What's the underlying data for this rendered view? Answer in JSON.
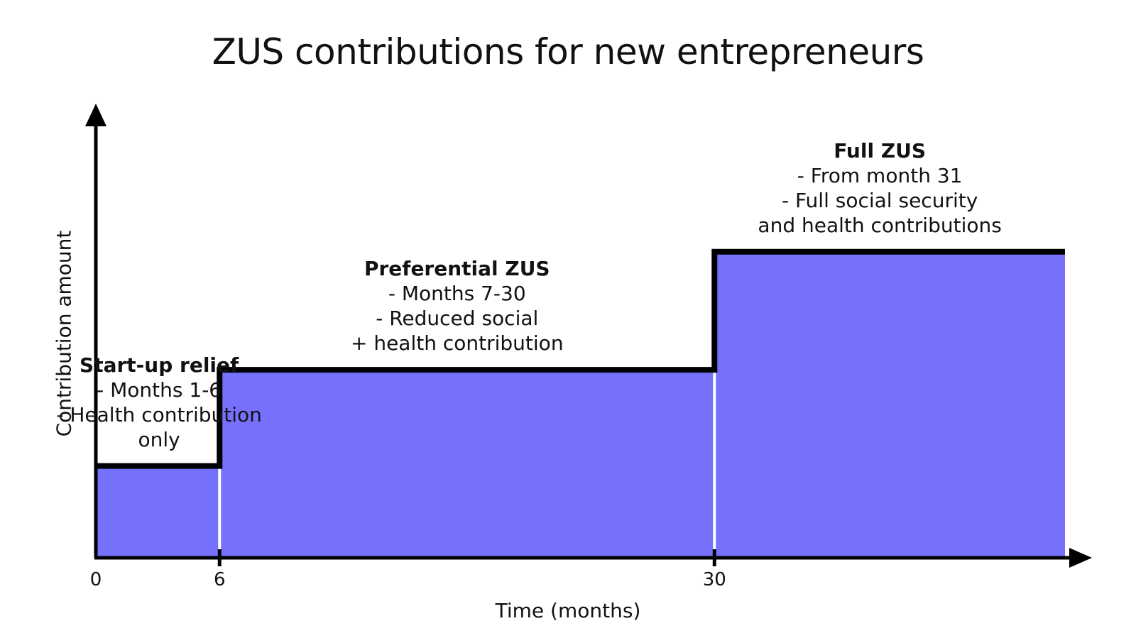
{
  "chart_data": {
    "type": "area",
    "title": "ZUS contributions for new entrepreneurs",
    "xlabel": "Time (months)",
    "ylabel": "Contribution amount",
    "x_ticks": [
      "0",
      "6",
      "30"
    ],
    "x_tick_values": [
      0,
      6,
      30
    ],
    "xlim": [
      0,
      47
    ],
    "ylim": [
      0,
      100
    ],
    "grid": false,
    "fill_color": "#7671fd",
    "line_color": "#000000",
    "steps": [
      {
        "start": 0,
        "end": 6,
        "level": 21,
        "title": "Start-up relief",
        "lines": [
          "- Months 1-6",
          "- Health contribution",
          "only"
        ]
      },
      {
        "start": 6,
        "end": 30,
        "level": 43,
        "title": "Preferential ZUS",
        "lines": [
          "- Months 7-30",
          "- Reduced social",
          "+ health contribution"
        ]
      },
      {
        "start": 30,
        "end": 47,
        "level": 70,
        "title": "Full ZUS",
        "lines": [
          "- From month 31",
          "- Full social security",
          "and health contributions"
        ]
      }
    ]
  }
}
